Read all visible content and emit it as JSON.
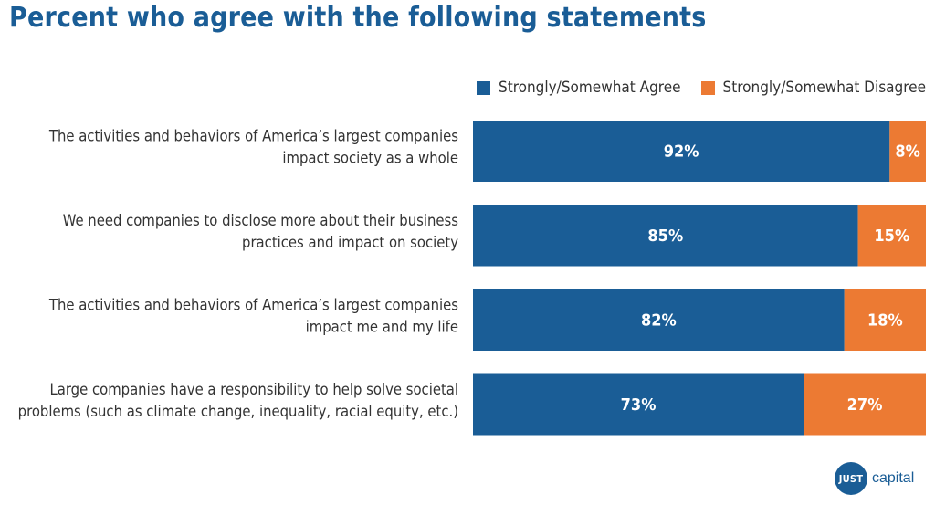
{
  "colors": {
    "agree": "#1a5d96",
    "disagree": "#ec7a33",
    "title": "#1a5d96"
  },
  "chart_data": {
    "type": "bar",
    "orientation": "horizontal",
    "stacked": true,
    "title": "Percent who agree with the following statements",
    "categories": [
      [
        "The activities and behaviors of America’s largest companies",
        "impact society as a whole"
      ],
      [
        "We need companies to disclose more about their business",
        "practices and impact on society"
      ],
      [
        "The activities and behaviors of America’s largest companies",
        "impact me and my life"
      ],
      [
        "Large companies have a responsibility to help solve societal",
        "problems (such as climate change, inequality, racial equity, etc.)"
      ]
    ],
    "series": [
      {
        "name": "Strongly/Somewhat Agree",
        "values": [
          92,
          85,
          82,
          73
        ],
        "labels": [
          "92%",
          "85%",
          "82%",
          "73%"
        ],
        "color": "#1a5d96"
      },
      {
        "name": "Strongly/Somewhat Disagree",
        "values": [
          8,
          15,
          18,
          27
        ],
        "labels": [
          "8%",
          "15%",
          "18%",
          "27%"
        ],
        "color": "#ec7a33"
      }
    ],
    "xlim": [
      0,
      100
    ],
    "grid": false,
    "legend": "top-right"
  },
  "logo": {
    "mark": "JUST",
    "word": "capital"
  }
}
